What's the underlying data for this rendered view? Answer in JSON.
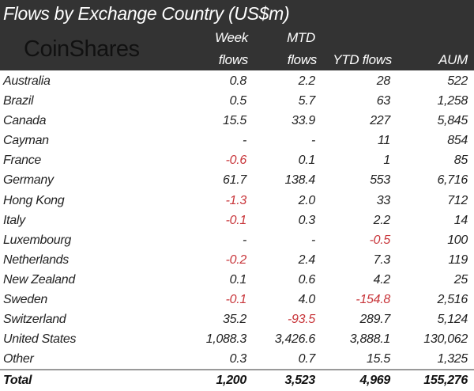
{
  "title": "Flows by Exchange Country (US$m)",
  "logo": "CoinShares",
  "columns": {
    "week_line1": "Week",
    "week_line2": "flows",
    "mtd_line1": "MTD",
    "mtd_line2": "flows",
    "ytd": "YTD flows",
    "aum": "AUM"
  },
  "colors": {
    "header_bg": "#333333",
    "negative": "#c8353a"
  },
  "rows": [
    {
      "country": "Australia",
      "week": "0.8",
      "mtd": "2.2",
      "ytd": "28",
      "aum": "522"
    },
    {
      "country": "Brazil",
      "week": "0.5",
      "mtd": "5.7",
      "ytd": "63",
      "aum": "1,258"
    },
    {
      "country": "Canada",
      "week": "15.5",
      "mtd": "33.9",
      "ytd": "227",
      "aum": "5,845"
    },
    {
      "country": "Cayman",
      "week": "-",
      "mtd": "-",
      "ytd": "11",
      "aum": "854"
    },
    {
      "country": "France",
      "week": "-0.6",
      "mtd": "0.1",
      "ytd": "1",
      "aum": "85"
    },
    {
      "country": "Germany",
      "week": "61.7",
      "mtd": "138.4",
      "ytd": "553",
      "aum": "6,716"
    },
    {
      "country": "Hong Kong",
      "week": "-1.3",
      "mtd": "2.0",
      "ytd": "33",
      "aum": "712"
    },
    {
      "country": "Italy",
      "week": "-0.1",
      "mtd": "0.3",
      "ytd": "2.2",
      "aum": "14"
    },
    {
      "country": "Luxembourg",
      "week": "-",
      "mtd": "-",
      "ytd": "-0.5",
      "aum": "100"
    },
    {
      "country": "Netherlands",
      "week": "-0.2",
      "mtd": "2.4",
      "ytd": "7.3",
      "aum": "119"
    },
    {
      "country": "New Zealand",
      "week": "0.1",
      "mtd": "0.6",
      "ytd": "4.2",
      "aum": "25"
    },
    {
      "country": "Sweden",
      "week": "-0.1",
      "mtd": "4.0",
      "ytd": "-154.8",
      "aum": "2,516"
    },
    {
      "country": "Switzerland",
      "week": "35.2",
      "mtd": "-93.5",
      "ytd": "289.7",
      "aum": "5,124"
    },
    {
      "country": "United States",
      "week": "1,088.3",
      "mtd": "3,426.6",
      "ytd": "3,888.1",
      "aum": "130,062"
    },
    {
      "country": "Other",
      "week": "0.3",
      "mtd": "0.7",
      "ytd": "15.5",
      "aum": "1,325"
    }
  ],
  "total": {
    "country": "Total",
    "week": "1,200",
    "mtd": "3,523",
    "ytd": "4,969",
    "aum": "155,276"
  }
}
